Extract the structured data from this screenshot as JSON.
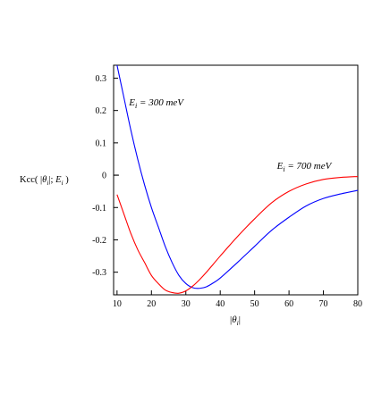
{
  "chart_data": {
    "type": "line",
    "title": "",
    "xlabel": "|θi|",
    "ylabel": "Kcc( |θi|; Ei )",
    "xlim": [
      9,
      80
    ],
    "ylim": [
      -0.37,
      0.34
    ],
    "x_ticks": [
      10,
      20,
      30,
      40,
      50,
      60,
      70,
      80
    ],
    "y_ticks": [
      0.3,
      0.2,
      0.1,
      0,
      -0.1,
      -0.2,
      -0.3
    ],
    "y_tick_labels": [
      "0.3",
      "0.2",
      "0.1",
      "0",
      "-0.1",
      "-0.2",
      "-0.3"
    ],
    "grid": false,
    "legend": "none",
    "series": [
      {
        "name": "Ei = 300 meV",
        "color": "#0000ff",
        "x": [
          10,
          12,
          14,
          16,
          18,
          20,
          22,
          24,
          26,
          28,
          30,
          32,
          34,
          36,
          38,
          40,
          45,
          50,
          55,
          60,
          65,
          70,
          75,
          80
        ],
        "y": [
          0.34,
          0.24,
          0.14,
          0.05,
          -0.03,
          -0.1,
          -0.16,
          -0.22,
          -0.27,
          -0.31,
          -0.335,
          -0.348,
          -0.35,
          -0.345,
          -0.333,
          -0.318,
          -0.27,
          -0.22,
          -0.17,
          -0.13,
          -0.095,
          -0.072,
          -0.058,
          -0.047
        ]
      },
      {
        "name": "Ei = 700 meV",
        "color": "#ff0000",
        "x": [
          10,
          12,
          14,
          16,
          18,
          20,
          22,
          24,
          26,
          28,
          30,
          32,
          34,
          36,
          38,
          40,
          45,
          50,
          55,
          60,
          65,
          70,
          75,
          80
        ],
        "y": [
          -0.06,
          -0.12,
          -0.18,
          -0.23,
          -0.27,
          -0.31,
          -0.335,
          -0.355,
          -0.363,
          -0.365,
          -0.358,
          -0.343,
          -0.323,
          -0.3,
          -0.275,
          -0.25,
          -0.19,
          -0.135,
          -0.085,
          -0.05,
          -0.027,
          -0.013,
          -0.007,
          -0.004
        ]
      }
    ],
    "annotations": [
      {
        "text_main": "E",
        "text_sub": "i",
        "text_rest": " = 300 meV",
        "x": 13.5,
        "y": 0.215
      },
      {
        "text_main": "E",
        "text_sub": "i",
        "text_rest": " = 700 meV",
        "x": 56.5,
        "y": 0.02
      }
    ]
  },
  "labels": {
    "ylabel_prefix": "Kcc( |",
    "ylabel_theta": "θ",
    "ylabel_sub": "i",
    "ylabel_mid": "|; ",
    "ylabel_E": "E",
    "ylabel_sub2": "i",
    "ylabel_suffix": " )",
    "xlabel_bar_left": "|",
    "xlabel_theta": "θ",
    "xlabel_sub": "i",
    "xlabel_bar_right": "|"
  }
}
